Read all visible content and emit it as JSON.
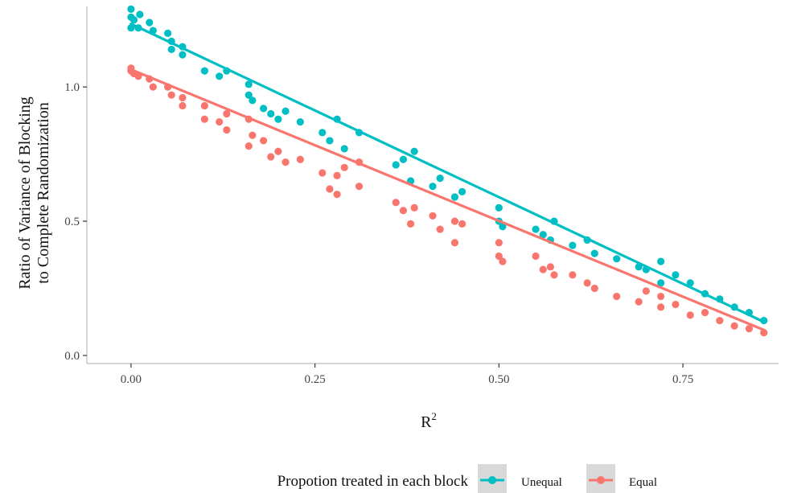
{
  "chart_data": {
    "type": "scatter",
    "title": "",
    "xlabel": "R",
    "xlabel_superscript": "2",
    "ylabel_lines": [
      "Ratio of Variance of Blocking",
      "to Complete Randomization"
    ],
    "xlim": [
      -0.06,
      0.88
    ],
    "ylim": [
      -0.03,
      1.3
    ],
    "x_ticks": [
      0.0,
      0.25,
      0.5,
      0.75
    ],
    "x_tick_labels": [
      "0.00",
      "0.25",
      "0.50",
      "0.75"
    ],
    "y_ticks": [
      0.0,
      0.5,
      1.0
    ],
    "y_tick_labels": [
      "0.0",
      "0.5",
      "1.0"
    ],
    "grid": false,
    "legend_position": "bottom",
    "legend_title": "Propotion treated in each block",
    "series": [
      {
        "name": "Unequal",
        "color": "#00BFC4",
        "fit_line": {
          "x": [
            0.0,
            0.86
          ],
          "y": [
            1.235,
            0.125
          ]
        },
        "x": [
          0.0,
          0.0,
          0.0,
          0.004,
          0.01,
          0.012,
          0.025,
          0.03,
          0.05,
          0.055,
          0.055,
          0.07,
          0.07,
          0.1,
          0.12,
          0.13,
          0.16,
          0.16,
          0.165,
          0.18,
          0.19,
          0.2,
          0.21,
          0.23,
          0.26,
          0.27,
          0.28,
          0.29,
          0.31,
          0.36,
          0.37,
          0.38,
          0.385,
          0.41,
          0.42,
          0.44,
          0.45,
          0.5,
          0.5,
          0.505,
          0.55,
          0.56,
          0.57,
          0.575,
          0.6,
          0.62,
          0.63,
          0.66,
          0.69,
          0.7,
          0.72,
          0.72,
          0.74,
          0.76,
          0.78,
          0.8,
          0.82,
          0.84,
          0.86
        ],
        "y": [
          1.29,
          1.26,
          1.22,
          1.25,
          1.22,
          1.27,
          1.24,
          1.21,
          1.2,
          1.17,
          1.14,
          1.15,
          1.12,
          1.06,
          1.04,
          1.06,
          1.01,
          0.97,
          0.95,
          0.92,
          0.9,
          0.88,
          0.91,
          0.87,
          0.83,
          0.8,
          0.88,
          0.77,
          0.83,
          0.71,
          0.73,
          0.65,
          0.76,
          0.63,
          0.66,
          0.59,
          0.61,
          0.55,
          0.5,
          0.48,
          0.47,
          0.45,
          0.43,
          0.5,
          0.41,
          0.43,
          0.38,
          0.36,
          0.33,
          0.32,
          0.35,
          0.27,
          0.3,
          0.27,
          0.23,
          0.21,
          0.18,
          0.16,
          0.13
        ]
      },
      {
        "name": "Equal",
        "color": "#F8766D",
        "fit_line": {
          "x": [
            0.0,
            0.86
          ],
          "y": [
            1.065,
            0.095
          ]
        },
        "x": [
          0.0,
          0.0,
          0.004,
          0.01,
          0.025,
          0.03,
          0.05,
          0.055,
          0.07,
          0.07,
          0.1,
          0.1,
          0.12,
          0.13,
          0.13,
          0.16,
          0.16,
          0.165,
          0.18,
          0.19,
          0.2,
          0.21,
          0.23,
          0.26,
          0.27,
          0.28,
          0.28,
          0.29,
          0.31,
          0.31,
          0.36,
          0.37,
          0.38,
          0.385,
          0.41,
          0.42,
          0.44,
          0.44,
          0.45,
          0.5,
          0.5,
          0.505,
          0.55,
          0.56,
          0.57,
          0.575,
          0.6,
          0.62,
          0.63,
          0.66,
          0.69,
          0.7,
          0.72,
          0.72,
          0.74,
          0.76,
          0.78,
          0.8,
          0.82,
          0.84,
          0.86
        ],
        "y": [
          1.07,
          1.06,
          1.05,
          1.04,
          1.03,
          1.0,
          1.0,
          0.97,
          0.96,
          0.93,
          0.93,
          0.88,
          0.87,
          0.9,
          0.84,
          0.88,
          0.78,
          0.82,
          0.8,
          0.74,
          0.76,
          0.72,
          0.73,
          0.68,
          0.62,
          0.67,
          0.6,
          0.7,
          0.72,
          0.63,
          0.57,
          0.54,
          0.49,
          0.55,
          0.52,
          0.47,
          0.5,
          0.42,
          0.49,
          0.42,
          0.37,
          0.35,
          0.37,
          0.32,
          0.33,
          0.3,
          0.3,
          0.27,
          0.25,
          0.22,
          0.2,
          0.24,
          0.22,
          0.18,
          0.19,
          0.15,
          0.16,
          0.13,
          0.11,
          0.1,
          0.085
        ]
      }
    ]
  }
}
